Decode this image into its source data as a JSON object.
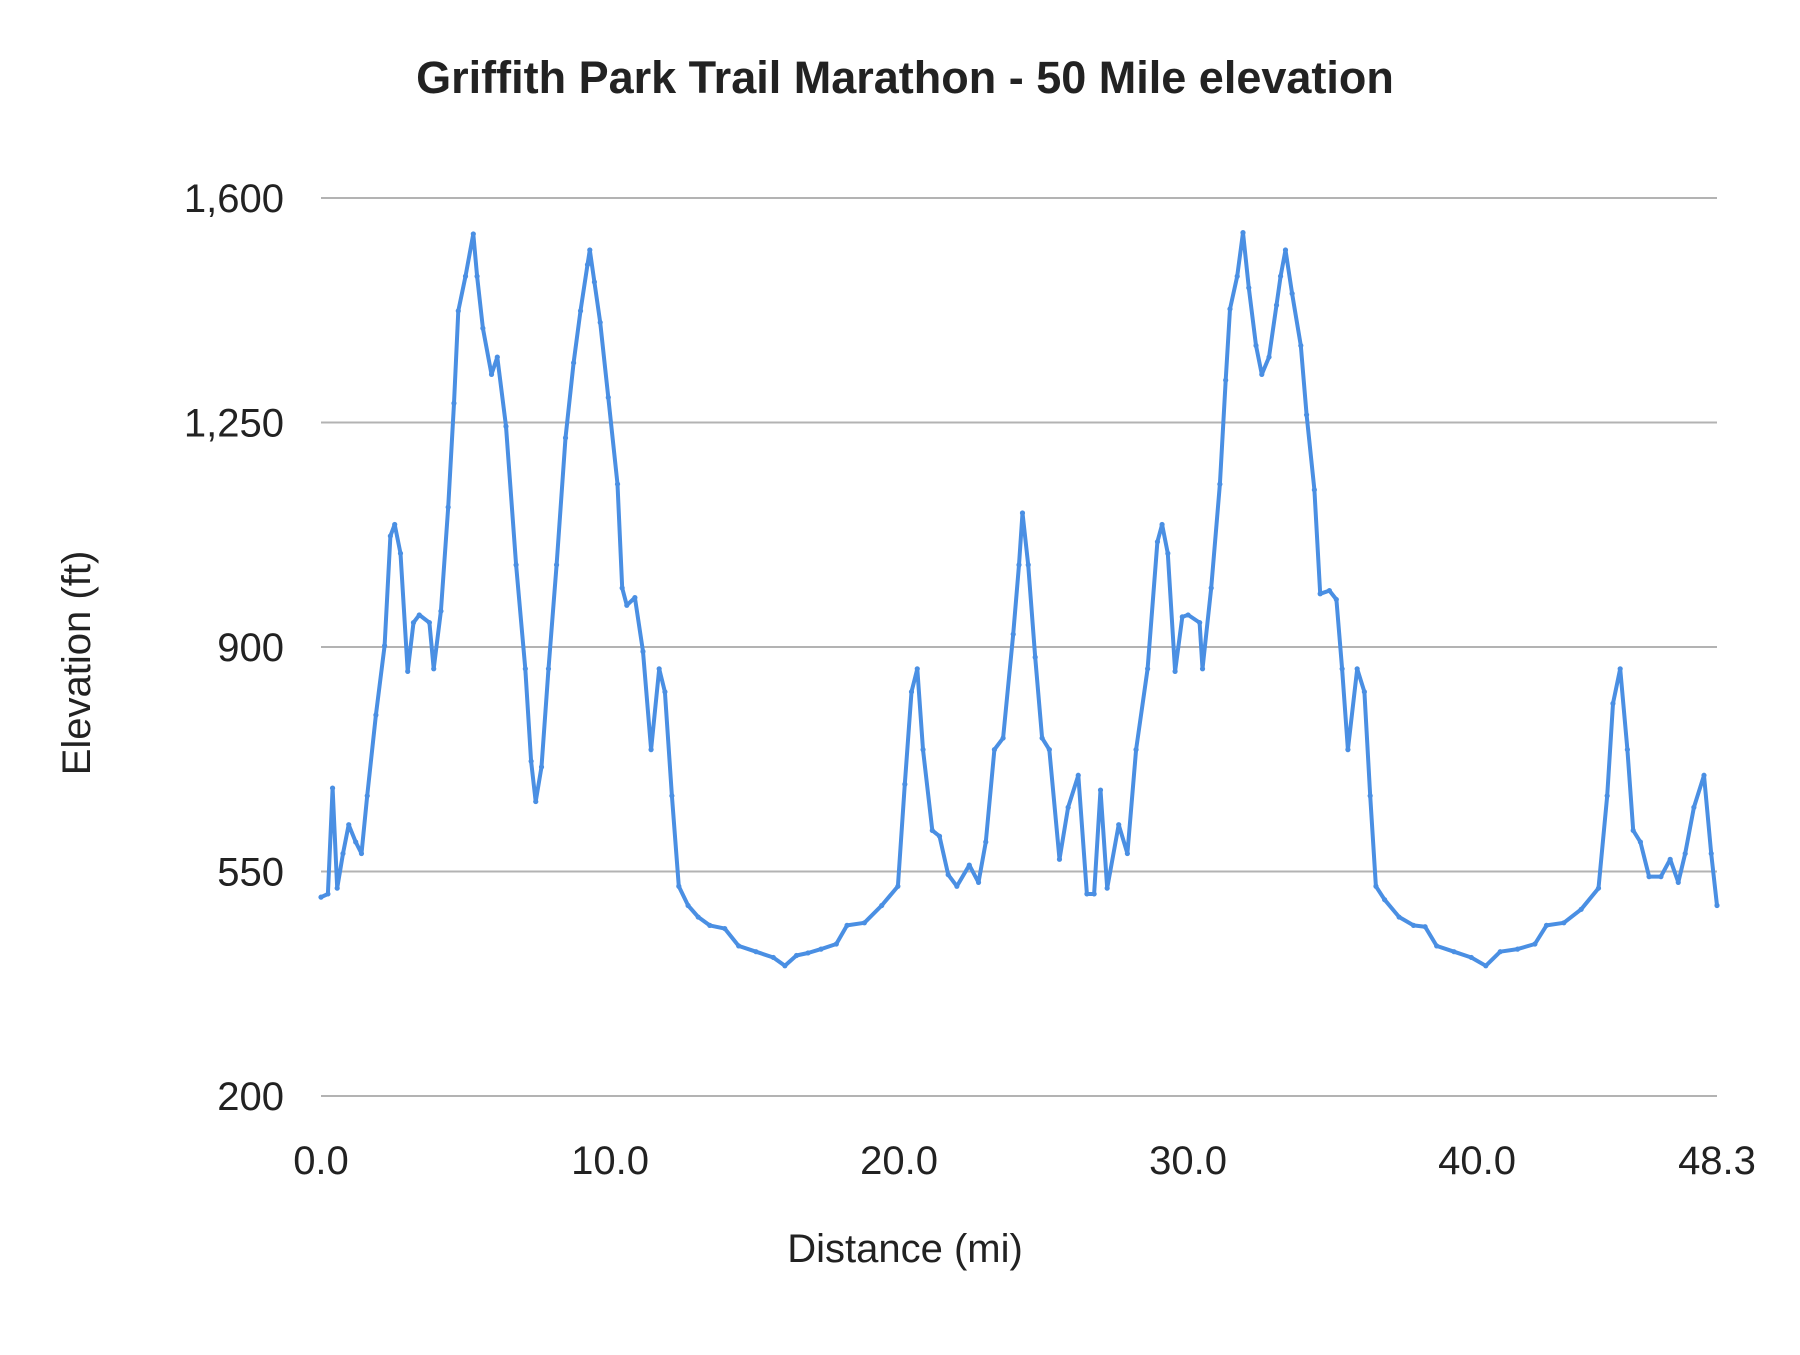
{
  "chart_data": {
    "type": "line",
    "title": "Griffith Park Trail Marathon - 50 Mile  elevation",
    "xlabel": "Distance (mi)",
    "ylabel": "Elevation (ft)",
    "xlim": [
      0,
      48.3
    ],
    "ylim": [
      200,
      1600
    ],
    "x_ticks": [
      "0.0",
      "10.0",
      "20.0",
      "30.0",
      "40.0",
      "48.3"
    ],
    "x_tick_values": [
      0,
      10,
      20,
      30,
      40,
      48.3
    ],
    "y_ticks": [
      "200",
      "550",
      "900",
      "1,250",
      "1,600"
    ],
    "y_tick_values": [
      200,
      550,
      900,
      1250,
      1600
    ],
    "grid": "horizontal",
    "legend": "none",
    "colors": {
      "line": "#4a8fe3",
      "grid": "#b3b3b3"
    },
    "series": [
      {
        "x": [
          0,
          0.24,
          0.4,
          0.56,
          0.76,
          0.96,
          1.2,
          1.4,
          1.6,
          1.9,
          2.2,
          2.4,
          2.55,
          2.75,
          3.0,
          3.2,
          3.4,
          3.75,
          3.9,
          4.15,
          4.4,
          4.6,
          4.75,
          5.0,
          5.27,
          5.4,
          5.6,
          5.9,
          6.1,
          6.4,
          6.75,
          7.07,
          7.27,
          7.43,
          7.63,
          7.87,
          8.15,
          8.46,
          8.74,
          8.98,
          9.22,
          9.3,
          9.46,
          9.66,
          9.94,
          10.26,
          10.42,
          10.58,
          10.86,
          11.14,
          11.42,
          11.7,
          11.9,
          12.14,
          12.38,
          12.7,
          13.05,
          13.45,
          13.97,
          14.45,
          15.05,
          15.65,
          16.05,
          16.45,
          16.85,
          17.3,
          17.83,
          18.2,
          18.8,
          19.4,
          19.96,
          20.2,
          20.43,
          20.63,
          20.83,
          21.15,
          21.4,
          21.7,
          22.0,
          22.43,
          22.75,
          23.0,
          23.3,
          23.6,
          23.95,
          24.15,
          24.27,
          24.47,
          24.71,
          24.95,
          25.2,
          25.55,
          25.85,
          26.2,
          26.5,
          26.75,
          26.97,
          27.2,
          27.6,
          27.9,
          28.2,
          28.6,
          28.94,
          29.1,
          29.3,
          29.55,
          29.8,
          30.0,
          30.4,
          30.5,
          30.8,
          31.1,
          31.3,
          31.45,
          31.7,
          31.9,
          32.1,
          32.35,
          32.55,
          32.8,
          33.06,
          33.2,
          33.37,
          33.6,
          33.9,
          34.1,
          34.37,
          34.57,
          34.89,
          35.13,
          35.33,
          35.53,
          35.85,
          36.1,
          36.3,
          36.5,
          36.8,
          37.3,
          37.8,
          38.2,
          38.6,
          39.2,
          39.8,
          40.3,
          40.8,
          41.4,
          42.0,
          42.4,
          43.0,
          43.6,
          44.2,
          44.5,
          44.7,
          44.95,
          45.2,
          45.4,
          45.65,
          45.95,
          46.36,
          46.68,
          46.96,
          47.2,
          47.5,
          47.85,
          48.1,
          48.3
        ],
        "y": [
          510,
          515,
          680,
          524,
          578,
          623,
          596,
          578,
          668,
          794,
          902,
          1073,
          1091,
          1046,
          862,
          938,
          950,
          938,
          866,
          956,
          1118,
          1280,
          1424,
          1478,
          1544,
          1478,
          1397,
          1325,
          1352,
          1244,
          1028,
          866,
          722,
          659,
          713,
          866,
          1028,
          1226,
          1343,
          1424,
          1496,
          1519,
          1469,
          1406,
          1289,
          1154,
          992,
          965,
          977,
          893,
          740,
          866,
          830,
          668,
          527,
          497,
          479,
          466,
          461,
          434,
          425,
          416,
          403,
          419,
          423,
          429,
          437,
          466,
          470,
          497,
          527,
          686,
          830,
          866,
          740,
          614,
          605,
          545,
          527,
          560,
          533,
          596,
          740,
          758,
          920,
          1028,
          1109,
          1028,
          884,
          758,
          740,
          569,
          650,
          700,
          515,
          515,
          677,
          524,
          623,
          578,
          740,
          866,
          1064,
          1091,
          1046,
          862,
          947,
          950,
          938,
          866,
          992,
          1154,
          1316,
          1427,
          1478,
          1546,
          1460,
          1370,
          1325,
          1352,
          1433,
          1478,
          1519,
          1451,
          1370,
          1262,
          1145,
          983,
          988,
          974,
          866,
          740,
          866,
          830,
          668,
          527,
          506,
          479,
          466,
          464,
          434,
          425,
          416,
          403,
          425,
          429,
          437,
          466,
          470,
          491,
          524,
          668,
          812,
          866,
          740,
          614,
          596,
          542,
          542,
          569,
          533,
          578,
          650,
          700,
          578,
          497
        ]
      }
    ]
  }
}
